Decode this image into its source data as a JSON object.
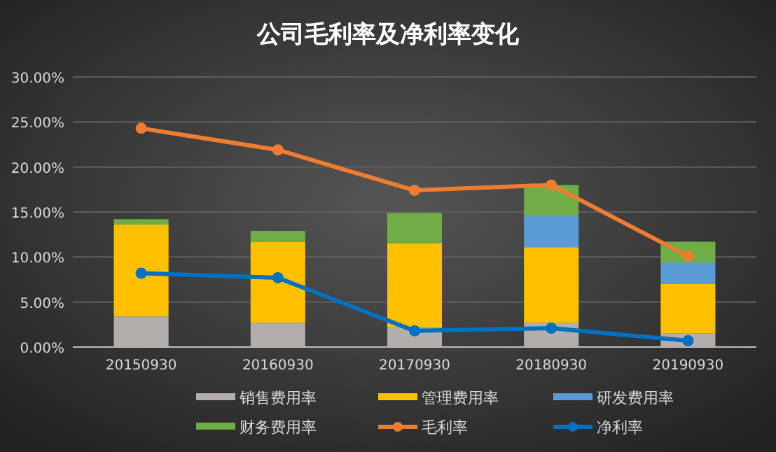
{
  "chart_data": {
    "type": "bar",
    "title": "公司毛利率及净利率变化",
    "stacked": true,
    "categories": [
      "20150930",
      "20160930",
      "20170930",
      "20180930",
      "20190930"
    ],
    "series": [
      {
        "name": "销售费用率",
        "color": "#b3aeab",
        "values": [
          3.4,
          2.7,
          2.2,
          2.7,
          1.5
        ]
      },
      {
        "name": "管理费用率",
        "color": "#ffc000",
        "values": [
          10.2,
          9.0,
          9.3,
          8.4,
          5.5
        ]
      },
      {
        "name": "研发费用率",
        "color": "#5b9bd5",
        "values": [
          0,
          0,
          0,
          3.5,
          2.4
        ]
      },
      {
        "name": "财务费用率",
        "color": "#70ad47",
        "values": [
          0.6,
          1.2,
          3.4,
          3.4,
          2.3
        ]
      },
      {
        "name": "毛利率",
        "type": "line",
        "color": "#ed7d31",
        "values": [
          24.3,
          21.9,
          17.4,
          18.0,
          10.1
        ]
      },
      {
        "name": "净利率",
        "type": "line",
        "color": "#0070c0",
        "values": [
          8.2,
          7.7,
          1.8,
          2.1,
          0.7
        ]
      }
    ],
    "ylim": [
      0,
      30
    ],
    "yticks": [
      {
        "value": 0,
        "label": "0.00%"
      },
      {
        "value": 5,
        "label": "5.00%"
      },
      {
        "value": 10,
        "label": "10.00%"
      },
      {
        "value": 15,
        "label": "15.00%"
      },
      {
        "value": 20,
        "label": "20.00%"
      },
      {
        "value": 25,
        "label": "25.00%"
      },
      {
        "value": 30,
        "label": "30.00%"
      }
    ],
    "grid": "y",
    "legend": "bottom",
    "marker": "circle"
  }
}
